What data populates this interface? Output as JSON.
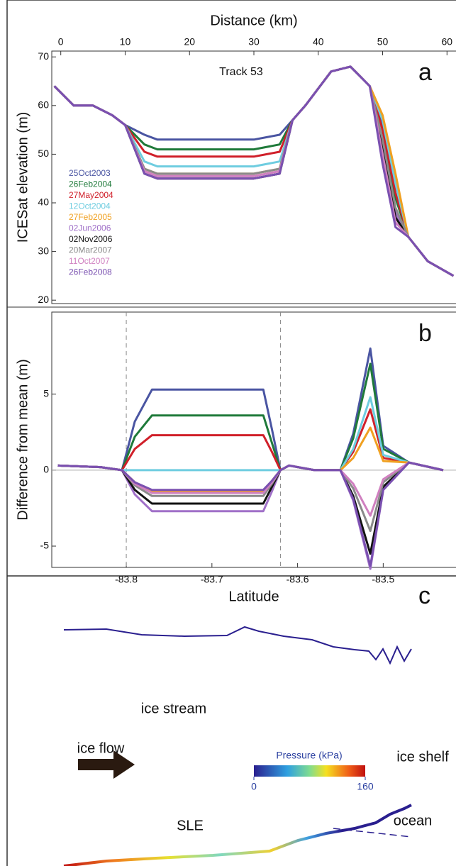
{
  "chart_data": [
    {
      "type": "line",
      "x_label": "Distance (km)",
      "y_label": "ICESat elevation (m)",
      "annotation": "Track 53",
      "panel_label": "a",
      "xlim": [
        -1.4,
        61.4
      ],
      "xticks": [
        0,
        10,
        20,
        30,
        40,
        50,
        60
      ],
      "ylim": [
        19.3,
        71.2
      ],
      "yticks": [
        20,
        30,
        40,
        50,
        60,
        70
      ],
      "x": [
        -1,
        2,
        5,
        8,
        10,
        13,
        15,
        20,
        25,
        30,
        34,
        36,
        38,
        42,
        45,
        48,
        50,
        52,
        54,
        57,
        61
      ],
      "series": [
        {
          "name": "25Oct2003",
          "color": "#4a55a2",
          "values": [
            64,
            60,
            60,
            58,
            56,
            54,
            53,
            53,
            53,
            53,
            54,
            57,
            60,
            67,
            68,
            64,
            56,
            42,
            33,
            28,
            25
          ]
        },
        {
          "name": "26Feb2004",
          "color": "#1f7a3a",
          "values": [
            64,
            60,
            60,
            58,
            56,
            52,
            51,
            51,
            51,
            51,
            52,
            57,
            60,
            67,
            68,
            64,
            55,
            41,
            33,
            28,
            25
          ]
        },
        {
          "name": "27May2004",
          "color": "#d0202a",
          "values": [
            64,
            60,
            60,
            58,
            56,
            50.5,
            49.5,
            49.5,
            49.5,
            49.5,
            50.5,
            57,
            60,
            67,
            68,
            64,
            55,
            42,
            33,
            28,
            25
          ]
        },
        {
          "name": "12Oct2004",
          "color": "#6fcde0",
          "values": [
            64,
            60,
            60,
            58,
            56,
            48.5,
            47.5,
            47.5,
            47.5,
            47.5,
            48.5,
            57,
            60,
            67,
            68,
            64,
            57,
            44,
            33,
            28,
            25
          ]
        },
        {
          "name": "27Feb2005",
          "color": "#f0a020",
          "values": [
            64,
            60,
            60,
            58,
            56,
            47,
            46,
            46,
            46,
            46,
            47,
            57,
            60,
            67,
            68,
            64,
            58,
            46,
            33,
            28,
            25
          ]
        },
        {
          "name": "02Jun2006",
          "color": "#a070c8",
          "values": [
            64,
            60,
            60,
            58,
            56,
            46.5,
            45.5,
            45.5,
            45.5,
            45.5,
            46.5,
            57,
            60,
            67,
            68,
            64,
            52,
            38,
            33,
            28,
            25
          ]
        },
        {
          "name": "02Nov2006",
          "color": "#111111",
          "values": [
            64,
            60,
            60,
            58,
            56,
            46,
            45,
            45,
            45,
            45,
            46,
            57,
            60,
            67,
            68,
            64,
            51,
            37,
            33,
            28,
            25
          ]
        },
        {
          "name": "20Mar2007",
          "color": "#8a8a8a",
          "values": [
            64,
            60,
            60,
            58,
            56,
            47,
            46,
            46,
            46,
            46,
            47,
            57,
            60,
            67,
            68,
            64,
            53,
            39,
            33,
            28,
            25
          ]
        },
        {
          "name": "11Oct2007",
          "color": "#d080c0",
          "values": [
            64,
            60,
            60,
            58,
            56,
            46.5,
            45.5,
            45.5,
            45.5,
            45.5,
            46.5,
            57,
            60,
            67,
            68,
            64,
            50,
            36,
            33,
            28,
            25
          ]
        },
        {
          "name": "26Feb2008",
          "color": "#7a50b0",
          "values": [
            64,
            60,
            60,
            58,
            56,
            46,
            45,
            45,
            45,
            45,
            46,
            57,
            60,
            67,
            68,
            64,
            48,
            35,
            33,
            28,
            25
          ]
        }
      ]
    },
    {
      "type": "line",
      "x_label": "Latitude",
      "y_label": "Difference from mean (m)",
      "panel_label": "b",
      "xlim": [
        -83.887,
        -83.415
      ],
      "xticks": [
        -83.8,
        -83.7,
        -83.6,
        -83.5
      ],
      "ylim": [
        -6.4,
        10.4
      ],
      "yticks": [
        -5,
        0,
        5
      ],
      "vlines": [
        -83.8,
        -83.62
      ],
      "x": [
        -83.88,
        -83.83,
        -83.805,
        -83.79,
        -83.77,
        -83.72,
        -83.67,
        -83.64,
        -83.63,
        -83.62,
        -83.61,
        -83.58,
        -83.55,
        -83.535,
        -83.515,
        -83.5,
        -83.47,
        -83.43
      ],
      "series": [
        {
          "name": "25Oct2003",
          "color": "#4a55a2",
          "values": [
            0.3,
            0.2,
            0,
            3.2,
            5.3,
            5.3,
            5.3,
            5.3,
            2.7,
            0,
            0.3,
            0,
            0,
            2.4,
            8,
            1.6,
            0.5,
            0
          ]
        },
        {
          "name": "26Feb2004",
          "color": "#1f7a3a",
          "values": [
            0.3,
            0.2,
            0,
            2.2,
            3.6,
            3.6,
            3.6,
            3.6,
            1.8,
            0,
            0.3,
            0,
            0,
            2.1,
            7,
            1.4,
            0.5,
            0
          ]
        },
        {
          "name": "27May2004",
          "color": "#d0202a",
          "values": [
            0.3,
            0.2,
            0,
            1.4,
            2.3,
            2.3,
            2.3,
            2.3,
            1.2,
            0,
            0.3,
            0,
            0,
            1.2,
            4,
            0.8,
            0.5,
            0
          ]
        },
        {
          "name": "12Oct2004",
          "color": "#6fcde0",
          "values": [
            0.3,
            0.2,
            0,
            0,
            0,
            0,
            0,
            0,
            0,
            0,
            0.3,
            0,
            0,
            1.4,
            4.8,
            1,
            0.5,
            0
          ]
        },
        {
          "name": "27Feb2005",
          "color": "#f0a020",
          "values": [
            0.3,
            0.2,
            0,
            -0.8,
            -1.4,
            -1.4,
            -1.4,
            -1.4,
            -0.7,
            0,
            0.3,
            0,
            0,
            0.8,
            2.8,
            0.6,
            0.5,
            0
          ]
        },
        {
          "name": "02Jun2006",
          "color": "#a070c8",
          "values": [
            0.3,
            0.2,
            0,
            -1.6,
            -2.7,
            -2.7,
            -2.7,
            -2.7,
            -1.4,
            0,
            0.3,
            0,
            0,
            -2,
            -6.5,
            -1.3,
            0.5,
            0
          ]
        },
        {
          "name": "02Nov2006",
          "color": "#111111",
          "values": [
            0.3,
            0.2,
            0,
            -1.3,
            -2.2,
            -2.2,
            -2.2,
            -2.2,
            -1.1,
            0,
            0.3,
            0,
            0,
            -1.7,
            -5.5,
            -1.1,
            0.5,
            0
          ]
        },
        {
          "name": "20Mar2007",
          "color": "#8a8a8a",
          "values": [
            0.3,
            0.2,
            0,
            -1,
            -1.7,
            -1.7,
            -1.7,
            -1.7,
            -0.9,
            0,
            0.3,
            0,
            0,
            -1.2,
            -4,
            -0.8,
            0.5,
            0
          ]
        },
        {
          "name": "11Oct2007",
          "color": "#d080c0",
          "values": [
            0.3,
            0.2,
            0,
            -0.9,
            -1.5,
            -1.5,
            -1.5,
            -1.5,
            -0.8,
            0,
            0.3,
            0,
            0,
            -0.9,
            -3,
            -0.6,
            0.5,
            0
          ]
        },
        {
          "name": "26Feb2008",
          "color": "#7a50b0",
          "values": [
            0.3,
            0.2,
            0,
            -0.8,
            -1.3,
            -1.3,
            -1.3,
            -1.3,
            -0.7,
            0,
            0.3,
            0,
            0,
            -1.9,
            -6.3,
            -1.3,
            0.5,
            0
          ]
        }
      ]
    }
  ],
  "diagram": {
    "panel_label": "c",
    "ice_stream": "ice stream",
    "ice_flow": "ice flow",
    "ice_shelf": "ice shelf",
    "sle": "SLE",
    "ocean": "ocean",
    "colorbar": {
      "label": "Pressure (kPa)",
      "lim": [
        0,
        160
      ],
      "ticks": [
        0,
        160
      ]
    }
  }
}
